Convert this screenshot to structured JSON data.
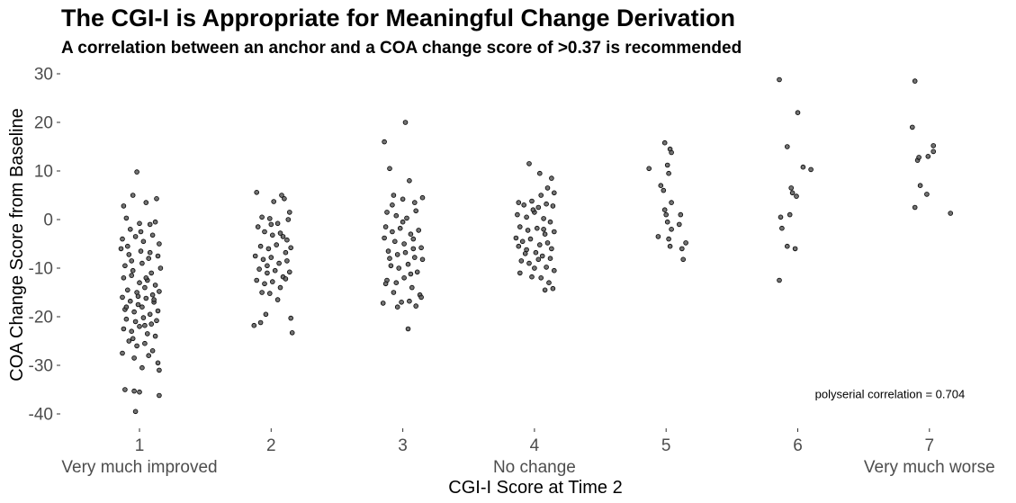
{
  "chart_data": {
    "type": "scatter",
    "title": "The CGI-I is Appropriate for Meaningful Change Derivation",
    "subtitle": "A correlation between an anchor and a COA change score of >0.37 is recommended",
    "xlabel": "CGI-I Score at Time 2",
    "ylabel": "COA Change Score from Baseline",
    "x_ticks": [
      "1",
      "2",
      "3",
      "4",
      "5",
      "6",
      "7"
    ],
    "x_category_labels": [
      {
        "x": 1,
        "label": "Very much improved"
      },
      {
        "x": 4,
        "label": "No change"
      },
      {
        "x": 7,
        "label": "Very much worse"
      }
    ],
    "y_ticks": [
      30,
      20,
      10,
      0,
      -10,
      -20,
      -30,
      -40
    ],
    "xlim": [
      0.4,
      7.6
    ],
    "ylim": [
      -44,
      32
    ],
    "grid": false,
    "annotation": {
      "text": "polyserial correlation =  0.704",
      "x": 6.7,
      "y": -36
    },
    "points": [
      {
        "x": 0.98,
        "y": 9.8
      },
      {
        "x": 0.95,
        "y": 5.0
      },
      {
        "x": 1.05,
        "y": 3.5
      },
      {
        "x": 1.13,
        "y": 4.3
      },
      {
        "x": 0.88,
        "y": 2.8
      },
      {
        "x": 0.9,
        "y": 0.3
      },
      {
        "x": 1.0,
        "y": -0.8
      },
      {
        "x": 1.08,
        "y": -1.0
      },
      {
        "x": 1.12,
        "y": -0.5
      },
      {
        "x": 0.93,
        "y": -2.0
      },
      {
        "x": 0.87,
        "y": -4.0
      },
      {
        "x": 0.97,
        "y": -3.5
      },
      {
        "x": 1.03,
        "y": -4.5
      },
      {
        "x": 1.1,
        "y": -3.2
      },
      {
        "x": 1.15,
        "y": -5.0
      },
      {
        "x": 0.86,
        "y": -6.0
      },
      {
        "x": 0.92,
        "y": -7.2
      },
      {
        "x": 1.01,
        "y": -6.5
      },
      {
        "x": 1.07,
        "y": -8.0
      },
      {
        "x": 1.14,
        "y": -7.5
      },
      {
        "x": 0.89,
        "y": -9.5
      },
      {
        "x": 0.95,
        "y": -10.5
      },
      {
        "x": 1.02,
        "y": -9.0
      },
      {
        "x": 1.09,
        "y": -11.0
      },
      {
        "x": 1.16,
        "y": -10.0
      },
      {
        "x": 0.88,
        "y": -12.0
      },
      {
        "x": 0.94,
        "y": -11.5
      },
      {
        "x": 1.0,
        "y": -13.0
      },
      {
        "x": 1.06,
        "y": -12.5
      },
      {
        "x": 1.12,
        "y": -13.5
      },
      {
        "x": 0.91,
        "y": -14.5
      },
      {
        "x": 0.98,
        "y": -15.0
      },
      {
        "x": 1.04,
        "y": -14.0
      },
      {
        "x": 1.1,
        "y": -15.5
      },
      {
        "x": 1.15,
        "y": -14.8
      },
      {
        "x": 0.87,
        "y": -16.0
      },
      {
        "x": 0.93,
        "y": -16.8
      },
      {
        "x": 0.99,
        "y": -17.5
      },
      {
        "x": 1.05,
        "y": -16.2
      },
      {
        "x": 1.11,
        "y": -17.0
      },
      {
        "x": 0.89,
        "y": -18.5
      },
      {
        "x": 0.96,
        "y": -19.0
      },
      {
        "x": 1.02,
        "y": -18.0
      },
      {
        "x": 1.08,
        "y": -19.5
      },
      {
        "x": 1.14,
        "y": -18.8
      },
      {
        "x": 0.9,
        "y": -20.5
      },
      {
        "x": 0.97,
        "y": -21.0
      },
      {
        "x": 1.03,
        "y": -20.2
      },
      {
        "x": 1.09,
        "y": -21.5
      },
      {
        "x": 1.13,
        "y": -20.8
      },
      {
        "x": 0.88,
        "y": -22.5
      },
      {
        "x": 0.94,
        "y": -23.0
      },
      {
        "x": 1.0,
        "y": -22.0
      },
      {
        "x": 1.06,
        "y": -23.5
      },
      {
        "x": 1.12,
        "y": -24.0
      },
      {
        "x": 0.92,
        "y": -25.0
      },
      {
        "x": 0.98,
        "y": -26.0
      },
      {
        "x": 1.04,
        "y": -25.5
      },
      {
        "x": 1.1,
        "y": -27.0
      },
      {
        "x": 0.87,
        "y": -27.5
      },
      {
        "x": 0.96,
        "y": -28.5
      },
      {
        "x": 1.07,
        "y": -28.0
      },
      {
        "x": 1.14,
        "y": -29.5
      },
      {
        "x": 1.15,
        "y": -31.0
      },
      {
        "x": 1.02,
        "y": -30.5
      },
      {
        "x": 0.89,
        "y": -35.0
      },
      {
        "x": 0.96,
        "y": -35.3
      },
      {
        "x": 1.0,
        "y": -35.5
      },
      {
        "x": 1.15,
        "y": -36.2
      },
      {
        "x": 0.97,
        "y": -39.5
      },
      {
        "x": 0.91,
        "y": -5.5
      },
      {
        "x": 1.01,
        "y": -2.5
      },
      {
        "x": 1.08,
        "y": -6.8
      },
      {
        "x": 0.94,
        "y": -8.5
      },
      {
        "x": 1.05,
        "y": -12.0
      },
      {
        "x": 0.99,
        "y": -15.8
      },
      {
        "x": 1.11,
        "y": -16.5
      },
      {
        "x": 0.9,
        "y": -18.0
      },
      {
        "x": 1.04,
        "y": -21.8
      },
      {
        "x": 0.95,
        "y": -24.5
      },
      {
        "x": 1.89,
        "y": 5.6
      },
      {
        "x": 2.08,
        "y": 5.0
      },
      {
        "x": 2.1,
        "y": 4.3
      },
      {
        "x": 2.02,
        "y": 3.7
      },
      {
        "x": 2.14,
        "y": 1.5
      },
      {
        "x": 1.93,
        "y": 0.5
      },
      {
        "x": 1.99,
        "y": 0.2
      },
      {
        "x": 2.05,
        "y": -0.8
      },
      {
        "x": 2.13,
        "y": 0.0
      },
      {
        "x": 1.9,
        "y": -1.5
      },
      {
        "x": 1.95,
        "y": -2.5
      },
      {
        "x": 2.01,
        "y": -3.2
      },
      {
        "x": 2.07,
        "y": -2.8
      },
      {
        "x": 2.12,
        "y": -4.2
      },
      {
        "x": 1.92,
        "y": -5.5
      },
      {
        "x": 1.98,
        "y": -6.0
      },
      {
        "x": 2.04,
        "y": -5.2
      },
      {
        "x": 2.11,
        "y": -6.8
      },
      {
        "x": 2.15,
        "y": -5.8
      },
      {
        "x": 1.88,
        "y": -7.5
      },
      {
        "x": 1.94,
        "y": -8.2
      },
      {
        "x": 2.0,
        "y": -7.8
      },
      {
        "x": 2.06,
        "y": -9.0
      },
      {
        "x": 2.12,
        "y": -8.5
      },
      {
        "x": 1.91,
        "y": -10.2
      },
      {
        "x": 1.97,
        "y": -11.0
      },
      {
        "x": 2.03,
        "y": -10.5
      },
      {
        "x": 2.09,
        "y": -11.8
      },
      {
        "x": 2.14,
        "y": -10.8
      },
      {
        "x": 1.89,
        "y": -12.5
      },
      {
        "x": 1.95,
        "y": -13.2
      },
      {
        "x": 2.01,
        "y": -12.8
      },
      {
        "x": 2.07,
        "y": -14.0
      },
      {
        "x": 1.93,
        "y": -15.0
      },
      {
        "x": 1.99,
        "y": -15.2
      },
      {
        "x": 2.05,
        "y": -16.5
      },
      {
        "x": 1.96,
        "y": -19.5
      },
      {
        "x": 1.92,
        "y": -21.2
      },
      {
        "x": 1.87,
        "y": -21.8
      },
      {
        "x": 2.15,
        "y": -20.3
      },
      {
        "x": 2.16,
        "y": -23.3
      },
      {
        "x": 2.0,
        "y": -1.0
      },
      {
        "x": 2.09,
        "y": -3.5
      },
      {
        "x": 1.97,
        "y": -9.5
      },
      {
        "x": 2.11,
        "y": -12.2
      },
      {
        "x": 2.86,
        "y": 16.0
      },
      {
        "x": 3.02,
        "y": 20.0
      },
      {
        "x": 2.9,
        "y": 10.5
      },
      {
        "x": 3.05,
        "y": 8.0
      },
      {
        "x": 2.93,
        "y": 5.0
      },
      {
        "x": 3.0,
        "y": 4.2
      },
      {
        "x": 3.09,
        "y": 3.5
      },
      {
        "x": 3.15,
        "y": 4.5
      },
      {
        "x": 2.88,
        "y": 1.5
      },
      {
        "x": 2.95,
        "y": 0.8
      },
      {
        "x": 3.03,
        "y": 0.3
      },
      {
        "x": 3.1,
        "y": 1.8
      },
      {
        "x": 2.87,
        "y": -1.5
      },
      {
        "x": 2.92,
        "y": -2.5
      },
      {
        "x": 2.98,
        "y": -1.8
      },
      {
        "x": 3.06,
        "y": -3.0
      },
      {
        "x": 3.12,
        "y": -2.2
      },
      {
        "x": 2.86,
        "y": -3.8
      },
      {
        "x": 2.94,
        "y": -4.5
      },
      {
        "x": 3.01,
        "y": -5.0
      },
      {
        "x": 3.08,
        "y": -4.0
      },
      {
        "x": 3.14,
        "y": -5.8
      },
      {
        "x": 2.89,
        "y": -6.5
      },
      {
        "x": 2.96,
        "y": -7.2
      },
      {
        "x": 3.02,
        "y": -6.8
      },
      {
        "x": 3.09,
        "y": -7.8
      },
      {
        "x": 3.15,
        "y": -8.2
      },
      {
        "x": 2.91,
        "y": -9.5
      },
      {
        "x": 2.97,
        "y": -10.0
      },
      {
        "x": 3.04,
        "y": -9.2
      },
      {
        "x": 3.11,
        "y": -10.8
      },
      {
        "x": 2.88,
        "y": -12.5
      },
      {
        "x": 2.95,
        "y": -13.0
      },
      {
        "x": 3.01,
        "y": -12.0
      },
      {
        "x": 3.07,
        "y": -14.0
      },
      {
        "x": 3.13,
        "y": -15.5
      },
      {
        "x": 3.14,
        "y": -16.0
      },
      {
        "x": 2.87,
        "y": -13.2
      },
      {
        "x": 2.93,
        "y": -15.0
      },
      {
        "x": 2.99,
        "y": -17.0
      },
      {
        "x": 3.05,
        "y": -16.8
      },
      {
        "x": 2.85,
        "y": -17.2
      },
      {
        "x": 3.1,
        "y": -17.8
      },
      {
        "x": 2.96,
        "y": -18.0
      },
      {
        "x": 3.04,
        "y": -22.5
      },
      {
        "x": 3.0,
        "y": -0.5
      },
      {
        "x": 2.9,
        "y": -8.0
      },
      {
        "x": 3.06,
        "y": -11.2
      },
      {
        "x": 2.92,
        "y": 3.0
      },
      {
        "x": 3.08,
        "y": -6.0
      },
      {
        "x": 3.96,
        "y": 11.5
      },
      {
        "x": 4.04,
        "y": 9.5
      },
      {
        "x": 4.13,
        "y": 8.5
      },
      {
        "x": 4.1,
        "y": 6.5
      },
      {
        "x": 4.15,
        "y": 5.5
      },
      {
        "x": 4.05,
        "y": 5.0
      },
      {
        "x": 3.88,
        "y": 3.5
      },
      {
        "x": 3.92,
        "y": 3.0
      },
      {
        "x": 3.98,
        "y": 3.8
      },
      {
        "x": 4.03,
        "y": 2.5
      },
      {
        "x": 4.09,
        "y": 3.2
      },
      {
        "x": 4.14,
        "y": 2.8
      },
      {
        "x": 3.87,
        "y": 1.0
      },
      {
        "x": 3.94,
        "y": 0.5
      },
      {
        "x": 4.0,
        "y": 1.5
      },
      {
        "x": 4.07,
        "y": 0.2
      },
      {
        "x": 4.12,
        "y": -0.5
      },
      {
        "x": 3.89,
        "y": -1.5
      },
      {
        "x": 3.95,
        "y": -2.2
      },
      {
        "x": 4.02,
        "y": -1.8
      },
      {
        "x": 4.08,
        "y": -3.0
      },
      {
        "x": 4.15,
        "y": -2.5
      },
      {
        "x": 3.86,
        "y": -3.8
      },
      {
        "x": 3.91,
        "y": -4.5
      },
      {
        "x": 3.97,
        "y": -4.0
      },
      {
        "x": 4.04,
        "y": -5.2
      },
      {
        "x": 4.1,
        "y": -4.8
      },
      {
        "x": 3.88,
        "y": -5.5
      },
      {
        "x": 3.94,
        "y": -6.2
      },
      {
        "x": 4.01,
        "y": -6.8
      },
      {
        "x": 4.06,
        "y": -7.5
      },
      {
        "x": 4.13,
        "y": -6.0
      },
      {
        "x": 3.9,
        "y": -8.5
      },
      {
        "x": 3.96,
        "y": -9.0
      },
      {
        "x": 4.03,
        "y": -8.2
      },
      {
        "x": 4.09,
        "y": -9.8
      },
      {
        "x": 4.15,
        "y": -10.5
      },
      {
        "x": 3.89,
        "y": -11.0
      },
      {
        "x": 3.98,
        "y": -11.8
      },
      {
        "x": 4.05,
        "y": -12.0
      },
      {
        "x": 4.11,
        "y": -13.0
      },
      {
        "x": 4.14,
        "y": -14.2
      },
      {
        "x": 4.08,
        "y": -14.5
      },
      {
        "x": 4.0,
        "y": -10.0
      },
      {
        "x": 3.93,
        "y": -7.0
      },
      {
        "x": 4.07,
        "y": -2.0
      },
      {
        "x": 3.99,
        "y": 2.0
      },
      {
        "x": 4.12,
        "y": -8.0
      },
      {
        "x": 4.99,
        "y": 15.8
      },
      {
        "x": 5.03,
        "y": 14.5
      },
      {
        "x": 5.04,
        "y": 13.8
      },
      {
        "x": 4.87,
        "y": 10.5
      },
      {
        "x": 5.01,
        "y": 11.2
      },
      {
        "x": 5.02,
        "y": 9.5
      },
      {
        "x": 4.96,
        "y": 7.0
      },
      {
        "x": 4.98,
        "y": 6.0
      },
      {
        "x": 5.04,
        "y": 3.5
      },
      {
        "x": 4.99,
        "y": 2.0
      },
      {
        "x": 5.0,
        "y": 1.0
      },
      {
        "x": 5.11,
        "y": 1.0
      },
      {
        "x": 5.01,
        "y": -0.5
      },
      {
        "x": 5.1,
        "y": -1.0
      },
      {
        "x": 5.04,
        "y": -2.0
      },
      {
        "x": 4.94,
        "y": -3.5
      },
      {
        "x": 5.02,
        "y": -4.0
      },
      {
        "x": 5.15,
        "y": -4.8
      },
      {
        "x": 5.03,
        "y": -5.5
      },
      {
        "x": 5.12,
        "y": -6.0
      },
      {
        "x": 5.13,
        "y": -8.2
      },
      {
        "x": 5.86,
        "y": 28.8
      },
      {
        "x": 6.0,
        "y": 22.0
      },
      {
        "x": 5.92,
        "y": 15.0
      },
      {
        "x": 6.04,
        "y": 10.8
      },
      {
        "x": 6.1,
        "y": 10.3
      },
      {
        "x": 5.95,
        "y": 6.5
      },
      {
        "x": 5.96,
        "y": 5.5
      },
      {
        "x": 5.99,
        "y": 4.8
      },
      {
        "x": 5.94,
        "y": 1.0
      },
      {
        "x": 5.87,
        "y": 0.5
      },
      {
        "x": 5.88,
        "y": -1.8
      },
      {
        "x": 5.92,
        "y": -5.5
      },
      {
        "x": 5.98,
        "y": -6.0
      },
      {
        "x": 5.86,
        "y": -12.5
      },
      {
        "x": 6.89,
        "y": 28.5
      },
      {
        "x": 6.87,
        "y": 19.0
      },
      {
        "x": 7.03,
        "y": 15.2
      },
      {
        "x": 7.03,
        "y": 14.0
      },
      {
        "x": 6.99,
        "y": 13.0
      },
      {
        "x": 6.91,
        "y": 12.2
      },
      {
        "x": 6.92,
        "y": 12.8
      },
      {
        "x": 6.93,
        "y": 7.0
      },
      {
        "x": 6.98,
        "y": 5.2
      },
      {
        "x": 6.89,
        "y": 2.5
      },
      {
        "x": 7.16,
        "y": 1.3
      }
    ]
  }
}
